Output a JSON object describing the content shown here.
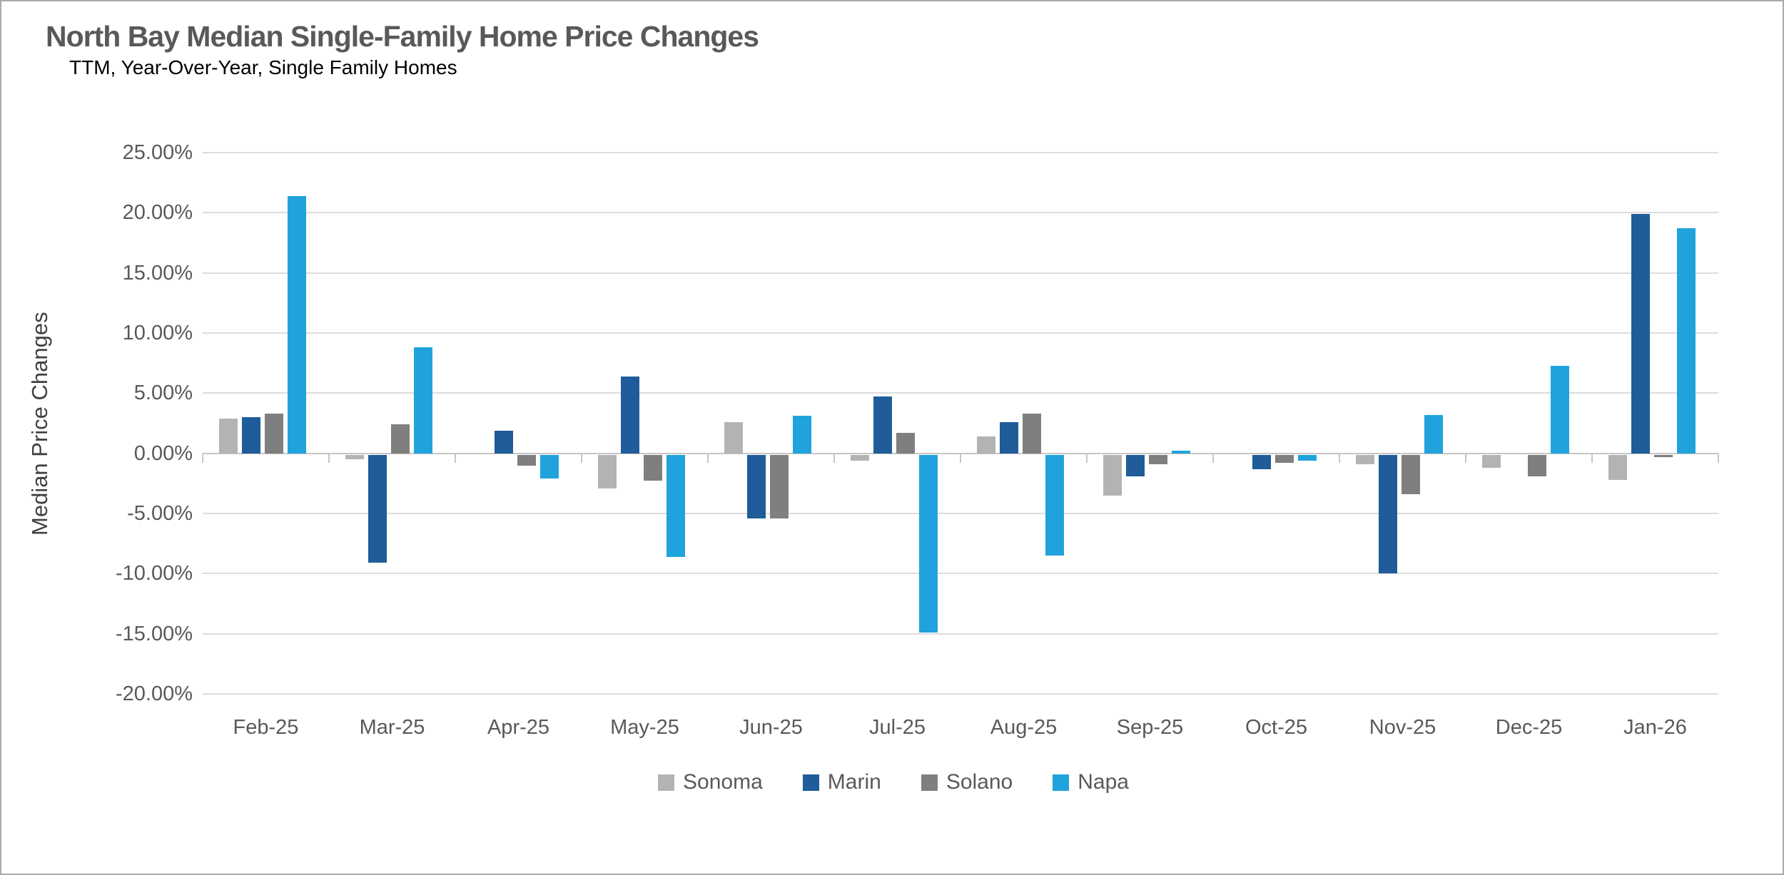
{
  "chart_data": {
    "type": "bar",
    "title": "North Bay Median Single-Family Home Price Changes",
    "subtitle": "TTM, Year-Over-Year, Single Family Homes",
    "ylabel": "Median Price Changes",
    "categories": [
      "Feb-25",
      "Mar-25",
      "Apr-25",
      "May-25",
      "Jun-25",
      "Jul-25",
      "Aug-25",
      "Sep-25",
      "Oct-25",
      "Nov-25",
      "Dec-25",
      "Jan-26"
    ],
    "series": [
      {
        "name": "Sonoma",
        "color": "#b3b3b3",
        "values": [
          2.9,
          -0.5,
          0.0,
          -2.9,
          2.6,
          -0.6,
          1.4,
          -3.5,
          0.0,
          -0.9,
          -1.2,
          -2.2
        ]
      },
      {
        "name": "Marin",
        "color": "#1f5c99",
        "values": [
          3.0,
          -9.1,
          1.9,
          6.4,
          -5.4,
          4.7,
          2.6,
          -1.9,
          -1.3,
          -10.0,
          0.0,
          19.9
        ]
      },
      {
        "name": "Solano",
        "color": "#7f7f7f",
        "values": [
          3.3,
          2.4,
          -1.0,
          -2.3,
          -5.4,
          1.7,
          3.3,
          -0.9,
          -0.8,
          -3.4,
          -1.9,
          -0.3
        ]
      },
      {
        "name": "Napa",
        "color": "#20a3dc",
        "values": [
          21.4,
          8.8,
          -2.1,
          -8.6,
          3.1,
          -14.9,
          -8.5,
          0.2,
          -0.6,
          3.2,
          7.3,
          18.7
        ]
      }
    ],
    "ylim": [
      -20,
      25
    ],
    "ytick_step": 5,
    "ytick_labels": [
      "25.00%",
      "20.00%",
      "15.00%",
      "10.00%",
      "5.00%",
      "0.00%",
      "-5.00%",
      "-10.00%",
      "-15.00%",
      "-20.00%"
    ],
    "grid": true,
    "legend_position": "bottom"
  }
}
